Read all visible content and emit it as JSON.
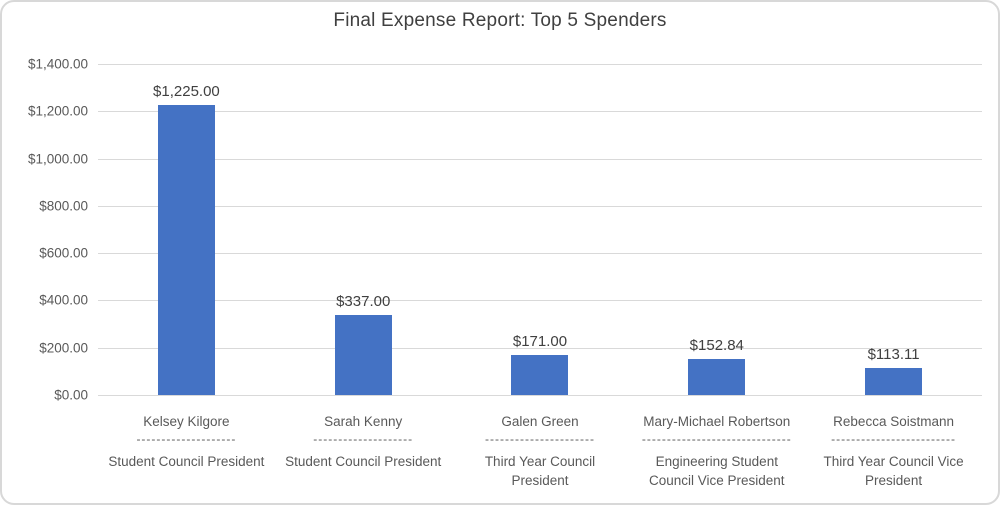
{
  "chart_data": {
    "type": "bar",
    "title": "Final Expense Report: Top 5 Spenders",
    "xlabel": "",
    "ylabel": "",
    "ylim": [
      0,
      1400
    ],
    "ytick_interval": 200,
    "grid": true,
    "legend": false,
    "bar_color": "#4472C4",
    "gridline_color": "#D9D9D9",
    "axis_text_color": "#595959",
    "label_text_color": "#404040",
    "ytick_labels": [
      "$1,400.00",
      "$1,200.00",
      "$1,000.00",
      "$800.00",
      "$600.00",
      "$400.00",
      "$200.00",
      "$0.00"
    ],
    "points": [
      {
        "name": "Kelsey Kilgore",
        "separator": "--------------------",
        "role": "Student Council President",
        "value": 1225.0,
        "value_label": "$1,225.00"
      },
      {
        "name": "Sarah Kenny",
        "separator": "--------------------",
        "role": "Student Council President",
        "value": 337.0,
        "value_label": "$337.00"
      },
      {
        "name": "Galen Green",
        "separator": "----------------------",
        "role": "Third Year Council President",
        "value": 171.0,
        "value_label": "$171.00"
      },
      {
        "name": "Mary-Michael Robertson",
        "separator": "------------------------------",
        "role": "Engineering Student Council Vice President",
        "value": 152.84,
        "value_label": "$152.84"
      },
      {
        "name": "Rebecca Soistmann",
        "separator": "-------------------------",
        "role": "Third Year Council Vice President",
        "value": 113.11,
        "value_label": "$113.11"
      }
    ]
  }
}
